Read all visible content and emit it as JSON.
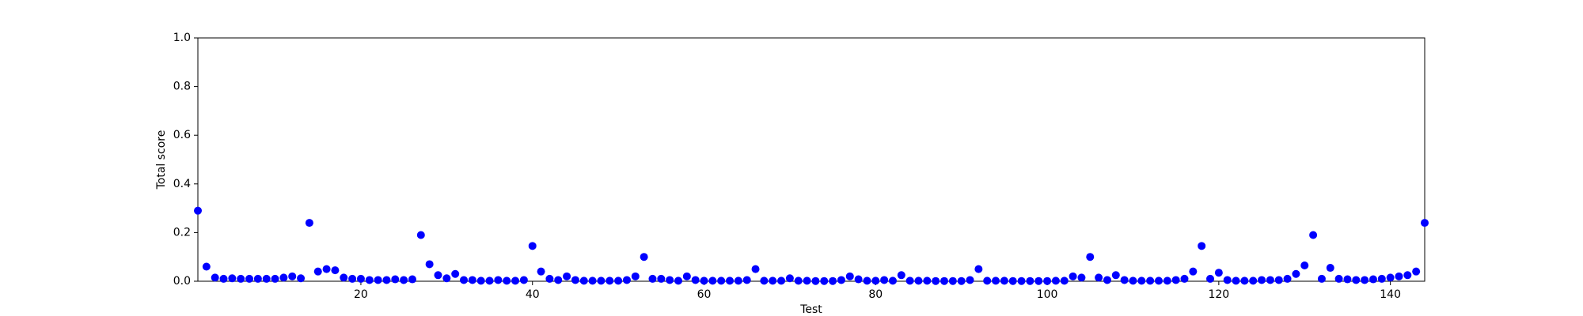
{
  "chart_data": {
    "type": "scatter",
    "x_label": "Test",
    "y_label": "Total score",
    "x": [
      1,
      2,
      3,
      4,
      5,
      6,
      7,
      8,
      9,
      10,
      11,
      12,
      13,
      14,
      15,
      16,
      17,
      18,
      19,
      20,
      21,
      22,
      23,
      24,
      25,
      26,
      27,
      28,
      29,
      30,
      31,
      32,
      33,
      34,
      35,
      36,
      37,
      38,
      39,
      40,
      41,
      42,
      43,
      44,
      45,
      46,
      47,
      48,
      49,
      50,
      51,
      52,
      53,
      54,
      55,
      56,
      57,
      58,
      59,
      60,
      61,
      62,
      63,
      64,
      65,
      66,
      67,
      68,
      69,
      70,
      71,
      72,
      73,
      74,
      75,
      76,
      77,
      78,
      79,
      80,
      81,
      82,
      83,
      84,
      85,
      86,
      87,
      88,
      89,
      90,
      91,
      92,
      93,
      94,
      95,
      96,
      97,
      98,
      99,
      100,
      101,
      102,
      103,
      104,
      105,
      106,
      107,
      108,
      109,
      110,
      111,
      112,
      113,
      114,
      115,
      116,
      117,
      118,
      119,
      120,
      121,
      122,
      123,
      124,
      125,
      126,
      127,
      128,
      129,
      130,
      131,
      132,
      133,
      134,
      135,
      136,
      137,
      138,
      139,
      140,
      141,
      142,
      143,
      144
    ],
    "values": [
      0.29,
      0.06,
      0.015,
      0.01,
      0.012,
      0.01,
      0.01,
      0.01,
      0.01,
      0.01,
      0.015,
      0.02,
      0.012,
      0.24,
      0.04,
      0.05,
      0.045,
      0.015,
      0.01,
      0.01,
      0.005,
      0.005,
      0.005,
      0.008,
      0.005,
      0.008,
      0.19,
      0.07,
      0.025,
      0.012,
      0.03,
      0.005,
      0.005,
      0.002,
      0.002,
      0.005,
      0.002,
      0.002,
      0.005,
      0.145,
      0.04,
      0.01,
      0.005,
      0.02,
      0.005,
      0.002,
      0.002,
      0.002,
      0.002,
      0.002,
      0.005,
      0.02,
      0.1,
      0.01,
      0.01,
      0.005,
      0.002,
      0.02,
      0.005,
      0.002,
      0.002,
      0.002,
      0.002,
      0.002,
      0.005,
      0.05,
      0.002,
      0.002,
      0.002,
      0.012,
      0.002,
      0.002,
      0.001,
      0.001,
      0.001,
      0.005,
      0.02,
      0.008,
      0.002,
      0.002,
      0.005,
      0.002,
      0.025,
      0.002,
      0.002,
      0.002,
      0.001,
      0.001,
      0.001,
      0.001,
      0.005,
      0.05,
      0.002,
      0.002,
      0.002,
      0.001,
      0.001,
      0.001,
      0.001,
      0.001,
      0.002,
      0.002,
      0.02,
      0.015,
      0.1,
      0.015,
      0.005,
      0.025,
      0.005,
      0.002,
      0.002,
      0.002,
      0.002,
      0.002,
      0.005,
      0.01,
      0.04,
      0.145,
      0.01,
      0.035,
      0.005,
      0.002,
      0.002,
      0.002,
      0.005,
      0.005,
      0.005,
      0.01,
      0.03,
      0.065,
      0.19,
      0.01,
      0.055,
      0.01,
      0.008,
      0.005,
      0.005,
      0.008,
      0.01,
      0.015,
      0.02,
      0.025,
      0.04,
      0.24
    ],
    "color": "#0000ff",
    "xlim": [
      1,
      144
    ],
    "xticks": [
      20,
      40,
      60,
      80,
      100,
      120,
      140
    ],
    "ylim": [
      0,
      1
    ],
    "yticks": [
      {
        "value": 0,
        "label": "0.0"
      },
      {
        "value": 0.2,
        "label": "0.2"
      },
      {
        "value": 0.4,
        "label": "0.4"
      },
      {
        "value": 0.6,
        "label": "0.6"
      },
      {
        "value": 0.8,
        "label": "0.8"
      },
      {
        "value": 1,
        "label": "1.0"
      }
    ]
  }
}
